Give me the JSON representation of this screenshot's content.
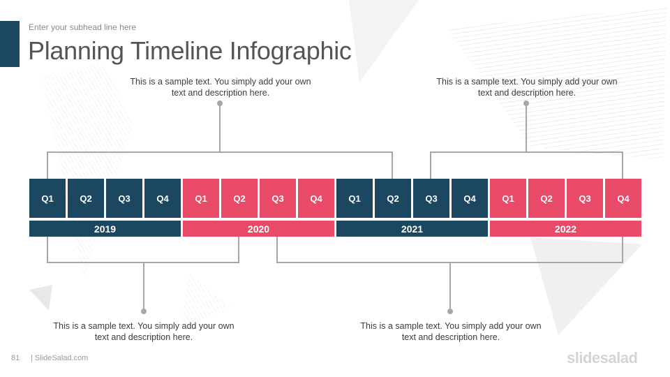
{
  "header": {
    "subhead": "Enter your subhead line here",
    "title": "Planning Timeline Infographic"
  },
  "colors": {
    "navy": "#1c4760",
    "pink": "#e84a68",
    "connector": "#a6a6a6",
    "text": "#3c3c3c"
  },
  "timeline": {
    "years": [
      {
        "label": "2019",
        "color": "navy",
        "quarters": [
          "Q1",
          "Q2",
          "Q3",
          "Q4"
        ]
      },
      {
        "label": "2020",
        "color": "pink",
        "quarters": [
          "Q1",
          "Q2",
          "Q3",
          "Q4"
        ]
      },
      {
        "label": "2021",
        "color": "navy",
        "quarters": [
          "Q1",
          "Q2",
          "Q3",
          "Q4"
        ]
      },
      {
        "label": "2022",
        "color": "pink",
        "quarters": [
          "Q1",
          "Q2",
          "Q3",
          "Q4"
        ]
      }
    ]
  },
  "callouts": {
    "top_left": "This is a sample text. You simply add your own text and description here.",
    "top_right": "This is a sample text. You simply add your own text and description here.",
    "bottom_left": "This is a sample text. You simply add your own text and description here.",
    "bottom_right": "This is a sample text. You simply add your own text and description here."
  },
  "footer": {
    "page_number": "81",
    "site": "| SlideSalad.com",
    "brand": "slidesalad"
  }
}
